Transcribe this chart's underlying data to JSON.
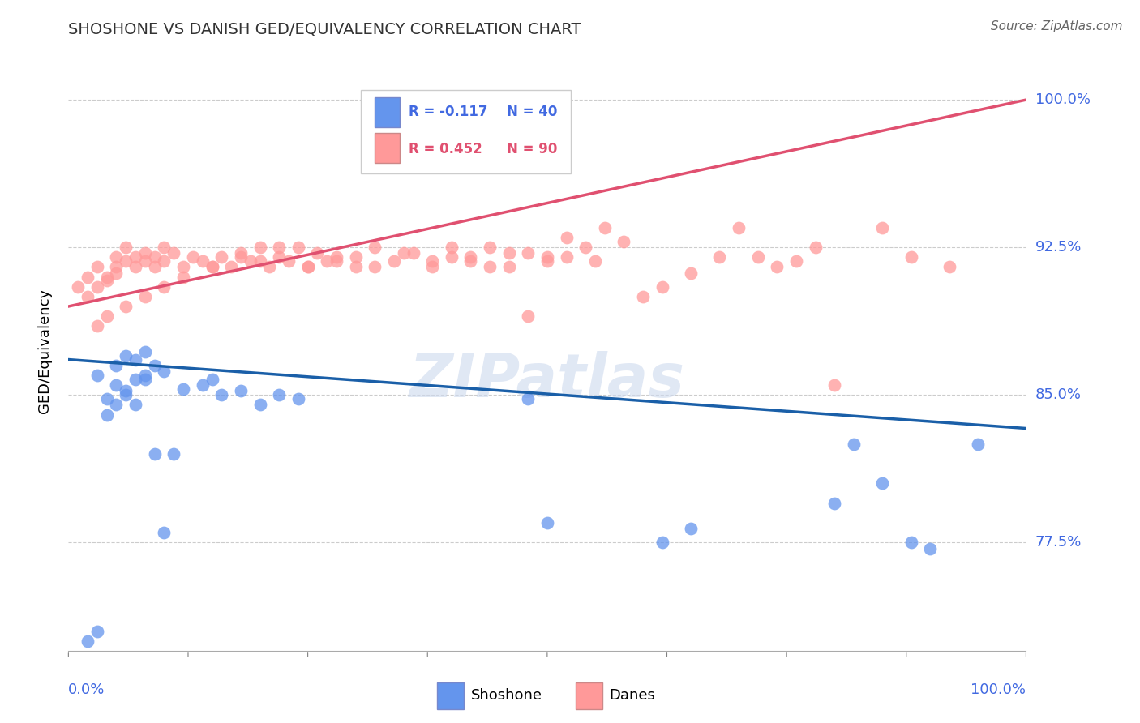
{
  "title": "SHOSHONE VS DANISH GED/EQUIVALENCY CORRELATION CHART",
  "source": "Source: ZipAtlas.com",
  "ylabel": "GED/Equivalency",
  "yticks": [
    77.5,
    85.0,
    92.5,
    100.0
  ],
  "ytick_labels": [
    "77.5%",
    "85.0%",
    "92.5%",
    "100.0%"
  ],
  "xlim": [
    0.0,
    1.0
  ],
  "ylim": [
    72.0,
    102.5
  ],
  "legend_blue_r": "R = -0.117",
  "legend_blue_n": "N = 40",
  "legend_pink_r": "R = 0.452",
  "legend_pink_n": "N = 90",
  "legend_blue_label": "Shoshone",
  "legend_pink_label": "Danes",
  "blue_color": "#6495ED",
  "pink_color": "#FF9999",
  "blue_line_color": "#1a5fa8",
  "pink_line_color": "#e05070",
  "watermark": "ZIPatlas",
  "blue_intercept": 86.8,
  "blue_slope": -3.5,
  "pink_intercept": 89.5,
  "pink_slope": 10.5,
  "shoshone_x": [
    0.02,
    0.03,
    0.04,
    0.05,
    0.06,
    0.05,
    0.04,
    0.06,
    0.07,
    0.08,
    0.09,
    0.1,
    0.08,
    0.07,
    0.12,
    0.15,
    0.14,
    0.22,
    0.2,
    0.18,
    0.16,
    0.24,
    0.03,
    0.05,
    0.06,
    0.07,
    0.08,
    0.09,
    0.1,
    0.11,
    0.48,
    0.5,
    0.62,
    0.65,
    0.8,
    0.85,
    0.82,
    0.88,
    0.9,
    0.95
  ],
  "shoshone_y": [
    72.5,
    73.0,
    84.0,
    84.5,
    85.0,
    85.5,
    84.8,
    85.2,
    85.8,
    86.0,
    86.5,
    86.2,
    85.8,
    84.5,
    85.3,
    85.8,
    85.5,
    85.0,
    84.5,
    85.2,
    85.0,
    84.8,
    86.0,
    86.5,
    87.0,
    86.8,
    87.2,
    82.0,
    78.0,
    82.0,
    84.8,
    78.5,
    77.5,
    78.2,
    79.5,
    80.5,
    82.5,
    77.5,
    77.2,
    82.5
  ],
  "danes_x": [
    0.01,
    0.02,
    0.02,
    0.03,
    0.03,
    0.04,
    0.04,
    0.05,
    0.05,
    0.05,
    0.06,
    0.06,
    0.07,
    0.07,
    0.08,
    0.08,
    0.09,
    0.09,
    0.1,
    0.1,
    0.11,
    0.12,
    0.13,
    0.14,
    0.15,
    0.16,
    0.17,
    0.18,
    0.19,
    0.2,
    0.21,
    0.22,
    0.23,
    0.24,
    0.25,
    0.26,
    0.27,
    0.28,
    0.3,
    0.32,
    0.34,
    0.36,
    0.38,
    0.4,
    0.42,
    0.44,
    0.46,
    0.48,
    0.5,
    0.52,
    0.03,
    0.04,
    0.06,
    0.08,
    0.1,
    0.12,
    0.15,
    0.18,
    0.2,
    0.22,
    0.25,
    0.28,
    0.3,
    0.32,
    0.35,
    0.38,
    0.4,
    0.42,
    0.44,
    0.46,
    0.48,
    0.5,
    0.52,
    0.54,
    0.55,
    0.56,
    0.58,
    0.6,
    0.62,
    0.65,
    0.68,
    0.7,
    0.72,
    0.74,
    0.76,
    0.78,
    0.8,
    0.85,
    0.88,
    0.92
  ],
  "danes_y": [
    90.5,
    91.0,
    90.0,
    90.5,
    91.5,
    91.0,
    90.8,
    91.2,
    92.0,
    91.5,
    92.5,
    91.8,
    92.0,
    91.5,
    92.2,
    91.8,
    92.0,
    91.5,
    92.5,
    91.8,
    92.2,
    91.5,
    92.0,
    91.8,
    91.5,
    92.0,
    91.5,
    92.2,
    91.8,
    92.5,
    91.5,
    92.0,
    91.8,
    92.5,
    91.5,
    92.2,
    91.8,
    92.0,
    91.5,
    92.5,
    91.8,
    92.2,
    91.5,
    92.0,
    91.8,
    92.5,
    91.5,
    92.2,
    91.8,
    92.0,
    88.5,
    89.0,
    89.5,
    90.0,
    90.5,
    91.0,
    91.5,
    92.0,
    91.8,
    92.5,
    91.5,
    91.8,
    92.0,
    91.5,
    92.2,
    91.8,
    92.5,
    92.0,
    91.5,
    92.2,
    89.0,
    92.0,
    93.0,
    92.5,
    91.8,
    93.5,
    92.8,
    90.0,
    90.5,
    91.2,
    92.0,
    93.5,
    92.0,
    91.5,
    91.8,
    92.5,
    85.5,
    93.5,
    92.0,
    91.5
  ]
}
